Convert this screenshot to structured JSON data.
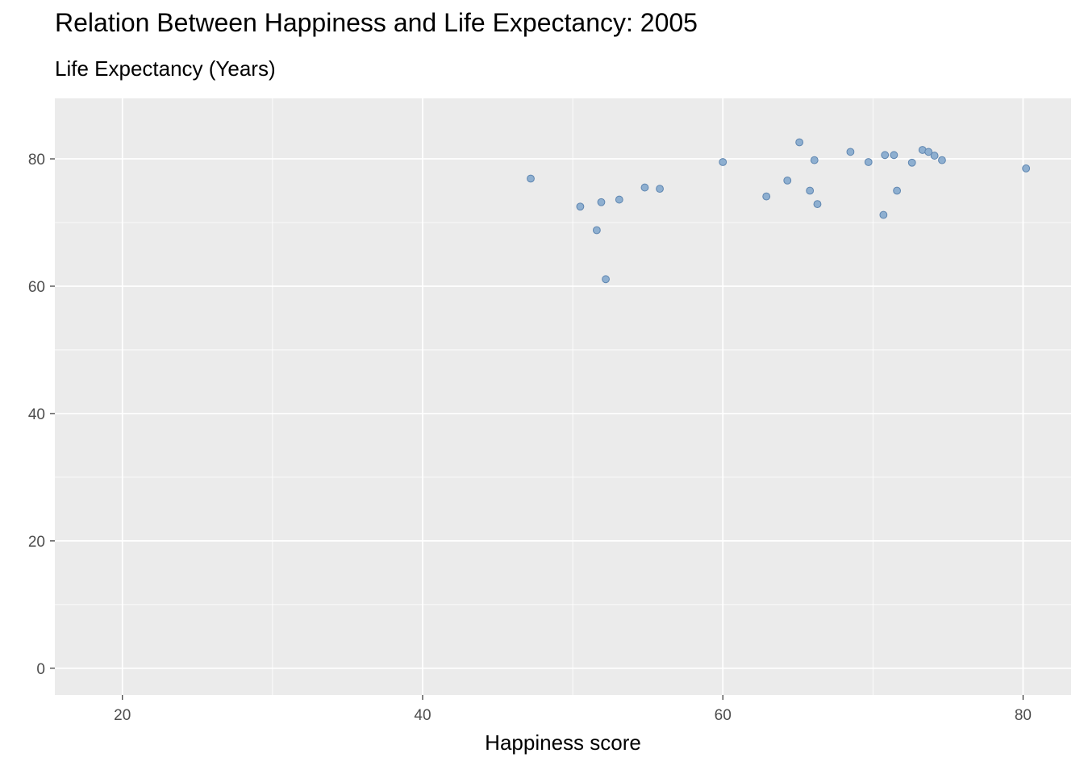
{
  "chart_data": {
    "type": "scatter",
    "title": "Relation Between Happiness and Life Expectancy: 2005",
    "subtitle": "Life Expectancy (Years)",
    "xlabel": "Happiness score",
    "ylabel": "",
    "xlim": [
      15.5,
      83.2
    ],
    "ylim": [
      -4.2,
      89.5
    ],
    "x_ticks": [
      20,
      40,
      60,
      80
    ],
    "x_tick_labels": [
      "20",
      "40",
      "60",
      "80"
    ],
    "y_ticks": [
      0,
      20,
      40,
      60,
      80
    ],
    "y_tick_labels": [
      "0",
      "20",
      "40",
      "60",
      "80"
    ],
    "grid": true,
    "legend": "none",
    "colors": {
      "panel": "#EBEBEB",
      "grid_major": "#FFFFFF",
      "point_fill": "#8EAFD0",
      "point_stroke": "#5F86B0"
    },
    "series": [
      {
        "x": [
          47.2,
          50.5,
          51.6,
          51.9,
          52.2,
          53.1,
          54.8,
          55.8,
          60.0,
          62.9,
          64.3,
          65.1,
          65.8,
          66.1,
          66.3,
          68.5,
          69.7,
          70.7,
          70.8,
          71.4,
          71.6,
          72.6,
          73.3,
          73.7,
          74.1,
          74.6,
          80.2
        ],
        "y": [
          76.9,
          72.5,
          68.8,
          73.2,
          61.1,
          73.6,
          75.5,
          75.3,
          79.5,
          74.1,
          76.6,
          82.6,
          75.0,
          79.8,
          72.9,
          81.1,
          79.5,
          71.2,
          80.6,
          80.6,
          75.0,
          79.4,
          81.4,
          81.1,
          80.5,
          79.8,
          78.5
        ]
      }
    ]
  }
}
